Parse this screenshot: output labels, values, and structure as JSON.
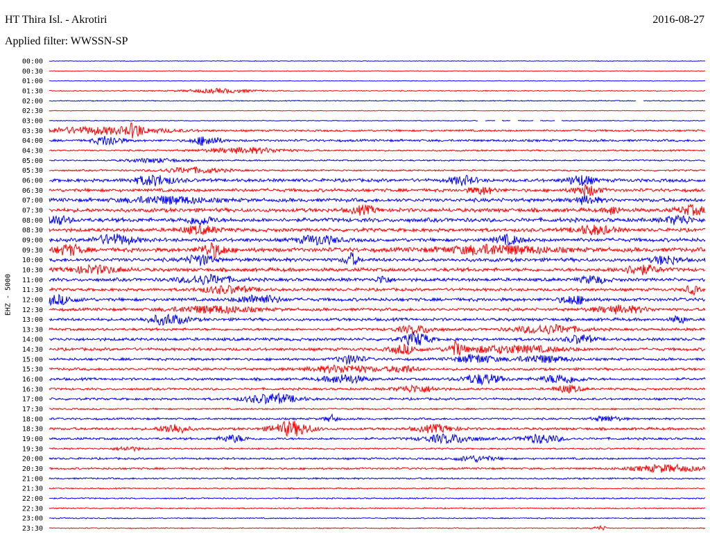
{
  "header": {
    "station": "HT Thira Isl. - Akrotiri",
    "date": "2016-08-27",
    "filter": "Applied filter: WWSSN-SP"
  },
  "channel_label": "EHZ - 5000",
  "colors": {
    "even_rows": "#0000ff",
    "odd_rows": "#ff0000",
    "background": "#ffffff",
    "text": "#000000"
  },
  "chart_data": {
    "type": "line",
    "ylabel": "EHZ - 5000",
    "grid": false,
    "row_labels": [
      "00:00",
      "00:30",
      "01:00",
      "01:30",
      "02:00",
      "02:30",
      "03:00",
      "03:30",
      "04:00",
      "04:30",
      "05:00",
      "05:30",
      "06:00",
      "06:30",
      "07:00",
      "07:30",
      "08:00",
      "08:30",
      "09:00",
      "09:30",
      "10:00",
      "10:30",
      "11:00",
      "11:30",
      "12:00",
      "12:30",
      "13:00",
      "13:30",
      "14:00",
      "14:30",
      "15:00",
      "15:30",
      "16:00",
      "16:30",
      "17:00",
      "17:30",
      "18:00",
      "18:30",
      "19:00",
      "19:30",
      "20:00",
      "20:30",
      "21:00",
      "21:30",
      "22:00",
      "22:30",
      "23:00",
      "23:30"
    ],
    "row_noise": [
      0.4,
      0.4,
      0.4,
      0.6,
      0.6,
      0.4,
      0.5,
      1.2,
      1.4,
      1.0,
      0.9,
      1.0,
      2.0,
      2.0,
      2.2,
      2.4,
      2.4,
      2.2,
      2.2,
      2.6,
      2.2,
      2.2,
      2.0,
      1.8,
      2.0,
      1.8,
      1.8,
      1.6,
      1.8,
      1.8,
      1.6,
      1.6,
      1.6,
      1.4,
      1.4,
      1.0,
      1.2,
      1.6,
      1.4,
      1.0,
      1.2,
      1.2,
      1.0,
      0.8,
      0.8,
      0.8,
      0.7,
      0.6
    ],
    "events": [
      {
        "row": 3,
        "x": 0.26,
        "amp": 3,
        "width": 0.05
      },
      {
        "row": 7,
        "x": 0.08,
        "amp": 5,
        "width": 0.1
      },
      {
        "row": 7,
        "x": 0.13,
        "amp": 8,
        "width": 0.01
      },
      {
        "row": 8,
        "x": 0.09,
        "amp": 7,
        "width": 0.02
      },
      {
        "row": 8,
        "x": 0.24,
        "amp": 7,
        "width": 0.02
      },
      {
        "row": 9,
        "x": 0.3,
        "amp": 4,
        "width": 0.06
      },
      {
        "row": 10,
        "x": 0.16,
        "amp": 3,
        "width": 0.04
      },
      {
        "row": 11,
        "x": 0.22,
        "amp": 4,
        "width": 0.05
      },
      {
        "row": 12,
        "x": 0.16,
        "amp": 7,
        "width": 0.03
      },
      {
        "row": 12,
        "x": 0.63,
        "amp": 6,
        "width": 0.02
      },
      {
        "row": 12,
        "x": 0.81,
        "amp": 7,
        "width": 0.02
      },
      {
        "row": 13,
        "x": 0.66,
        "amp": 5,
        "width": 0.02
      },
      {
        "row": 13,
        "x": 0.82,
        "amp": 7,
        "width": 0.02
      },
      {
        "row": 14,
        "x": 0.18,
        "amp": 5,
        "width": 0.06
      },
      {
        "row": 14,
        "x": 0.82,
        "amp": 5,
        "width": 0.02
      },
      {
        "row": 15,
        "x": 0.48,
        "amp": 5,
        "width": 0.02
      },
      {
        "row": 15,
        "x": 0.86,
        "amp": 6,
        "width": 0.01
      },
      {
        "row": 15,
        "x": 0.98,
        "amp": 6,
        "width": 0.02
      },
      {
        "row": 16,
        "x": 0.01,
        "amp": 6,
        "width": 0.02
      },
      {
        "row": 16,
        "x": 0.23,
        "amp": 6,
        "width": 0.02
      },
      {
        "row": 16,
        "x": 0.96,
        "amp": 6,
        "width": 0.02
      },
      {
        "row": 17,
        "x": 0.23,
        "amp": 5,
        "width": 0.03
      },
      {
        "row": 17,
        "x": 0.83,
        "amp": 6,
        "width": 0.03
      },
      {
        "row": 18,
        "x": 0.1,
        "amp": 7,
        "width": 0.03
      },
      {
        "row": 18,
        "x": 0.41,
        "amp": 6,
        "width": 0.03
      },
      {
        "row": 18,
        "x": 0.7,
        "amp": 6,
        "width": 0.02
      },
      {
        "row": 19,
        "x": 0.03,
        "amp": 7,
        "width": 0.02
      },
      {
        "row": 19,
        "x": 0.25,
        "amp": 9,
        "width": 0.02
      },
      {
        "row": 19,
        "x": 0.68,
        "amp": 6,
        "width": 0.08
      },
      {
        "row": 20,
        "x": 0.23,
        "amp": 7,
        "width": 0.02
      },
      {
        "row": 20,
        "x": 0.46,
        "amp": 9,
        "width": 0.01
      },
      {
        "row": 20,
        "x": 0.94,
        "amp": 6,
        "width": 0.02
      },
      {
        "row": 21,
        "x": 0.07,
        "amp": 5,
        "width": 0.04
      },
      {
        "row": 21,
        "x": 0.9,
        "amp": 6,
        "width": 0.03
      },
      {
        "row": 22,
        "x": 0.24,
        "amp": 6,
        "width": 0.04
      },
      {
        "row": 22,
        "x": 0.51,
        "amp": 6,
        "width": 0.01
      },
      {
        "row": 22,
        "x": 0.83,
        "amp": 5,
        "width": 0.02
      },
      {
        "row": 23,
        "x": 0.27,
        "amp": 5,
        "width": 0.04
      },
      {
        "row": 23,
        "x": 0.98,
        "amp": 6,
        "width": 0.01
      },
      {
        "row": 24,
        "x": 0.01,
        "amp": 6,
        "width": 0.03
      },
      {
        "row": 24,
        "x": 0.32,
        "amp": 6,
        "width": 0.03
      },
      {
        "row": 24,
        "x": 0.8,
        "amp": 6,
        "width": 0.02
      },
      {
        "row": 25,
        "x": 0.25,
        "amp": 5,
        "width": 0.06
      },
      {
        "row": 25,
        "x": 0.87,
        "amp": 5,
        "width": 0.04
      },
      {
        "row": 26,
        "x": 0.18,
        "amp": 7,
        "width": 0.03
      },
      {
        "row": 26,
        "x": 0.96,
        "amp": 5,
        "width": 0.01
      },
      {
        "row": 27,
        "x": 0.56,
        "amp": 5,
        "width": 0.03
      },
      {
        "row": 27,
        "x": 0.76,
        "amp": 6,
        "width": 0.05
      },
      {
        "row": 28,
        "x": 0.56,
        "amp": 9,
        "width": 0.02
      },
      {
        "row": 28,
        "x": 0.81,
        "amp": 6,
        "width": 0.02
      },
      {
        "row": 29,
        "x": 0.54,
        "amp": 6,
        "width": 0.02
      },
      {
        "row": 29,
        "x": 0.62,
        "amp": 9,
        "width": 0.01
      },
      {
        "row": 29,
        "x": 0.7,
        "amp": 5,
        "width": 0.08
      },
      {
        "row": 30,
        "x": 0.46,
        "amp": 6,
        "width": 0.02
      },
      {
        "row": 30,
        "x": 0.65,
        "amp": 6,
        "width": 0.03
      },
      {
        "row": 30,
        "x": 0.75,
        "amp": 5,
        "width": 0.04
      },
      {
        "row": 31,
        "x": 0.45,
        "amp": 5,
        "width": 0.05
      },
      {
        "row": 31,
        "x": 0.54,
        "amp": 5,
        "width": 0.02
      },
      {
        "row": 32,
        "x": 0.45,
        "amp": 6,
        "width": 0.03
      },
      {
        "row": 32,
        "x": 0.66,
        "amp": 7,
        "width": 0.03
      },
      {
        "row": 32,
        "x": 0.78,
        "amp": 6,
        "width": 0.03
      },
      {
        "row": 33,
        "x": 0.56,
        "amp": 5,
        "width": 0.03
      },
      {
        "row": 33,
        "x": 0.79,
        "amp": 5,
        "width": 0.02
      },
      {
        "row": 34,
        "x": 0.34,
        "amp": 7,
        "width": 0.04
      },
      {
        "row": 36,
        "x": 0.43,
        "amp": 5,
        "width": 0.01
      },
      {
        "row": 36,
        "x": 0.85,
        "amp": 4,
        "width": 0.02
      },
      {
        "row": 37,
        "x": 0.19,
        "amp": 7,
        "width": 0.02
      },
      {
        "row": 37,
        "x": 0.37,
        "amp": 10,
        "width": 0.03
      },
      {
        "row": 37,
        "x": 0.59,
        "amp": 5,
        "width": 0.03
      },
      {
        "row": 38,
        "x": 0.28,
        "amp": 5,
        "width": 0.02
      },
      {
        "row": 38,
        "x": 0.61,
        "amp": 6,
        "width": 0.04
      },
      {
        "row": 38,
        "x": 0.75,
        "amp": 6,
        "width": 0.03
      },
      {
        "row": 39,
        "x": 0.12,
        "amp": 3,
        "width": 0.02
      },
      {
        "row": 40,
        "x": 0.65,
        "amp": 4,
        "width": 0.03
      },
      {
        "row": 41,
        "x": 0.94,
        "amp": 5,
        "width": 0.05
      },
      {
        "row": 47,
        "x": 0.84,
        "amp": 3,
        "width": 0.01
      }
    ],
    "gaps": [
      {
        "row": 4,
        "x_start": 0.895,
        "x_end": 0.905
      },
      {
        "row": 6,
        "x_start": 0.654,
        "x_end": 0.664
      },
      {
        "row": 6,
        "x_start": 0.68,
        "x_end": 0.69
      },
      {
        "row": 6,
        "x_start": 0.704,
        "x_end": 0.714
      },
      {
        "row": 6,
        "x_start": 0.738,
        "x_end": 0.748
      },
      {
        "row": 6,
        "x_start": 0.771,
        "x_end": 0.781
      }
    ]
  }
}
